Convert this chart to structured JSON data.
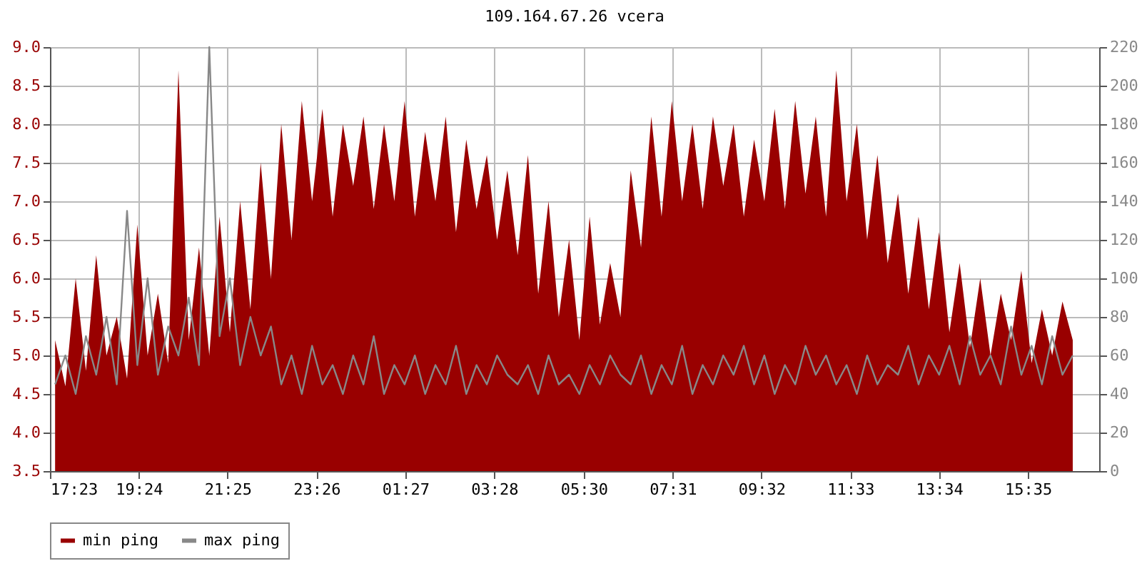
{
  "chart_data": {
    "type": "area",
    "title": "109.164.67.26 vcera",
    "x": [
      "--01-01T17:30",
      "--01-01T17:44",
      "--01-01T17:58",
      "--01-01T18:12",
      "--01-01T18:26",
      "--01-01T18:40",
      "--01-01T18:54",
      "--01-01T19:08",
      "--01-01T19:22",
      "--01-01T19:36",
      "--01-01T19:50",
      "--01-01T20:04",
      "--01-01T20:18",
      "--01-01T20:32",
      "--01-01T20:46",
      "--01-01T21:00",
      "--01-01T21:14",
      "--01-01T21:28",
      "--01-01T21:42",
      "--01-01T21:56",
      "--01-01T22:10",
      "--01-01T22:24",
      "--01-01T22:38",
      "--01-01T22:52",
      "--01-01T23:06",
      "--01-01T23:20",
      "--01-01T23:34",
      "--01-01T23:48",
      "--01-02T00:02",
      "--01-02T00:16",
      "--01-02T00:30",
      "--01-02T00:44",
      "--01-02T00:58",
      "--01-02T01:12",
      "--01-02T01:26",
      "--01-02T01:40",
      "--01-02T01:54",
      "--01-02T02:08",
      "--01-02T02:22",
      "--01-02T02:36",
      "--01-02T02:50",
      "--01-02T03:04",
      "--01-02T03:18",
      "--01-02T03:32",
      "--01-02T03:46",
      "--01-02T04:00",
      "--01-02T04:14",
      "--01-02T04:28",
      "--01-02T04:42",
      "--01-02T04:56",
      "--01-02T05:10",
      "--01-02T05:24",
      "--01-02T05:38",
      "--01-02T05:52",
      "--01-02T06:06",
      "--01-02T06:20",
      "--01-02T06:34",
      "--01-02T06:48",
      "--01-02T07:02",
      "--01-02T07:16",
      "--01-02T07:30",
      "--01-02T07:44",
      "--01-02T07:58",
      "--01-02T08:12",
      "--01-02T08:26",
      "--01-02T08:40",
      "--01-02T08:54",
      "--01-02T09:08",
      "--01-02T09:22",
      "--01-02T09:36",
      "--01-02T09:50",
      "--01-02T10:04",
      "--01-02T10:18",
      "--01-02T10:32",
      "--01-02T10:46",
      "--01-02T11:00",
      "--01-02T11:14",
      "--01-02T11:28",
      "--01-02T11:42",
      "--01-02T11:56",
      "--01-02T12:10",
      "--01-02T12:24",
      "--01-02T12:38",
      "--01-02T12:52",
      "--01-02T13:06",
      "--01-02T13:20",
      "--01-02T13:34",
      "--01-02T13:48",
      "--01-02T14:02",
      "--01-02T14:16",
      "--01-02T14:30",
      "--01-02T14:44",
      "--01-02T14:58",
      "--01-02T15:12",
      "--01-02T15:26",
      "--01-02T15:40",
      "--01-02T15:54",
      "--01-02T16:08",
      "--01-02T16:22",
      "--01-02T16:36"
    ],
    "series": [
      {
        "name": "min ping",
        "color": "#990000",
        "values": [
          5.2,
          4.6,
          6.0,
          4.8,
          6.3,
          5.0,
          5.5,
          4.7,
          6.7,
          5.0,
          5.8,
          4.9,
          8.7,
          5.2,
          6.4,
          5.0,
          6.8,
          5.3,
          7.0,
          5.6,
          7.5,
          6.0,
          8.0,
          6.5,
          8.3,
          7.0,
          8.2,
          6.8,
          8.0,
          7.2,
          8.1,
          6.9,
          8.0,
          7.0,
          8.3,
          6.8,
          7.9,
          7.0,
          8.1,
          6.6,
          7.8,
          6.9,
          7.6,
          6.5,
          7.4,
          6.3,
          7.6,
          5.8,
          7.0,
          5.5,
          6.5,
          5.2,
          6.8,
          5.4,
          6.2,
          5.5,
          7.4,
          6.4,
          8.1,
          6.8,
          8.3,
          7.0,
          8.0,
          6.9,
          8.1,
          7.2,
          8.0,
          6.8,
          7.8,
          7.0,
          8.2,
          6.9,
          8.3,
          7.1,
          8.1,
          6.8,
          8.7,
          7.0,
          8.0,
          6.5,
          7.6,
          6.2,
          7.1,
          5.8,
          6.8,
          5.6,
          6.6,
          5.3,
          6.2,
          5.1,
          6.0,
          5.0,
          5.8,
          5.2,
          6.1,
          4.9,
          5.6,
          5.0,
          5.7,
          5.2
        ]
      },
      {
        "name": "max ping",
        "type": "line",
        "axis": "y2",
        "color": "#888888",
        "values": [
          45,
          60,
          40,
          70,
          50,
          80,
          45,
          135,
          55,
          100,
          50,
          75,
          60,
          90,
          55,
          220,
          70,
          100,
          55,
          80,
          60,
          75,
          45,
          60,
          40,
          65,
          45,
          55,
          40,
          60,
          45,
          70,
          40,
          55,
          45,
          60,
          40,
          55,
          45,
          65,
          40,
          55,
          45,
          60,
          50,
          45,
          55,
          40,
          60,
          45,
          50,
          40,
          55,
          45,
          60,
          50,
          45,
          60,
          40,
          55,
          45,
          65,
          40,
          55,
          45,
          60,
          50,
          65,
          45,
          60,
          40,
          55,
          45,
          65,
          50,
          60,
          45,
          55,
          40,
          60,
          45,
          55,
          50,
          65,
          45,
          60,
          50,
          65,
          45,
          70,
          50,
          60,
          45,
          75,
          50,
          65,
          45,
          70,
          50,
          60
        ]
      }
    ],
    "xlim": [
      "--01-01T17:23",
      "--01-02T17:12"
    ],
    "xticks": [
      {
        "value": "--01-01T17:23",
        "label": "17:23"
      },
      {
        "value": "--01-01T19:24",
        "label": "19:24"
      },
      {
        "value": "--01-01T21:25",
        "label": "21:25"
      },
      {
        "value": "--01-01T23:26",
        "label": "23:26"
      },
      {
        "value": "--01-02T01:27",
        "label": "01:27"
      },
      {
        "value": "--01-02T03:28",
        "label": "03:28"
      },
      {
        "value": "--01-02T05:30",
        "label": "05:30"
      },
      {
        "value": "--01-02T07:31",
        "label": "07:31"
      },
      {
        "value": "--01-02T09:32",
        "label": "09:32"
      },
      {
        "value": "--01-02T11:33",
        "label": "11:33"
      },
      {
        "value": "--01-02T13:34",
        "label": "13:34"
      },
      {
        "value": "--01-02T15:35",
        "label": "15:35"
      }
    ],
    "ylim": [
      3.5,
      9.0
    ],
    "yticks": [
      {
        "value": 3.5,
        "label": "3.5"
      },
      {
        "value": 4,
        "label": "4.0"
      },
      {
        "value": 4.5,
        "label": "4.5"
      },
      {
        "value": 5,
        "label": "5.0"
      },
      {
        "value": 5.5,
        "label": "5.5"
      },
      {
        "value": 6,
        "label": "6.0"
      },
      {
        "value": 6.5,
        "label": "6.5"
      },
      {
        "value": 7,
        "label": "7.0"
      },
      {
        "value": 7.5,
        "label": "7.5"
      },
      {
        "value": 8,
        "label": "8.0"
      },
      {
        "value": 8.5,
        "label": "8.5"
      },
      {
        "value": 9,
        "label": "9.0"
      }
    ],
    "y2lim": [
      0,
      220
    ],
    "y2ticks": [
      0,
      20,
      40,
      60,
      80,
      100,
      120,
      140,
      160,
      180,
      200,
      220
    ],
    "grid": true,
    "legend": "bottom",
    "marker": "none",
    "line_style": "solid"
  }
}
